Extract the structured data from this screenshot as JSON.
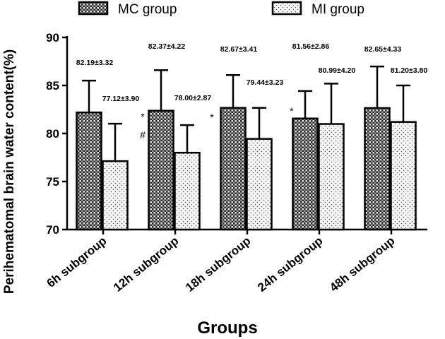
{
  "chart_data": {
    "type": "bar",
    "title": "",
    "xlabel": "Groups",
    "ylabel": "Perihematomal brain water content(%)",
    "ylim": [
      70,
      90
    ],
    "yticks": [
      "70",
      "75",
      "80",
      "85",
      "90"
    ],
    "yticks_values": [
      70,
      75,
      80,
      85,
      90
    ],
    "categories": [
      "6h subgroup",
      "12h subgroup",
      "18h subgroup",
      "24h subgroup",
      "48h subgroup"
    ],
    "legend": {
      "position": "top",
      "entries": [
        "MC  group",
        "MI group"
      ]
    },
    "series": [
      {
        "name": "MC  group",
        "values": [
          82.19,
          82.37,
          82.67,
          81.56,
          82.65
        ],
        "errors": [
          3.32,
          4.22,
          3.41,
          2.86,
          4.33
        ],
        "labels": [
          "82.19±3.32",
          "82.37±4.22",
          "82.67±3.41",
          "81.56±2.86",
          "82.65±4.33"
        ],
        "pattern": "crosshatch"
      },
      {
        "name": "MI group",
        "values": [
          77.12,
          78.0,
          79.44,
          80.99,
          81.2
        ],
        "errors": [
          3.9,
          2.87,
          3.23,
          4.2,
          3.8
        ],
        "labels": [
          "77.12±3.90",
          "78.00±2.87",
          "79.44±3.23",
          "80.99±4.20",
          "81.20±3.80"
        ],
        "pattern": "dots"
      }
    ],
    "annotations": [
      {
        "category": "6h subgroup",
        "text": "*"
      },
      {
        "category": "6h subgroup",
        "text": "#"
      },
      {
        "category": "12h subgroup",
        "text": "*"
      },
      {
        "category": "18h subgroup",
        "text": "*"
      }
    ],
    "grid": false
  }
}
